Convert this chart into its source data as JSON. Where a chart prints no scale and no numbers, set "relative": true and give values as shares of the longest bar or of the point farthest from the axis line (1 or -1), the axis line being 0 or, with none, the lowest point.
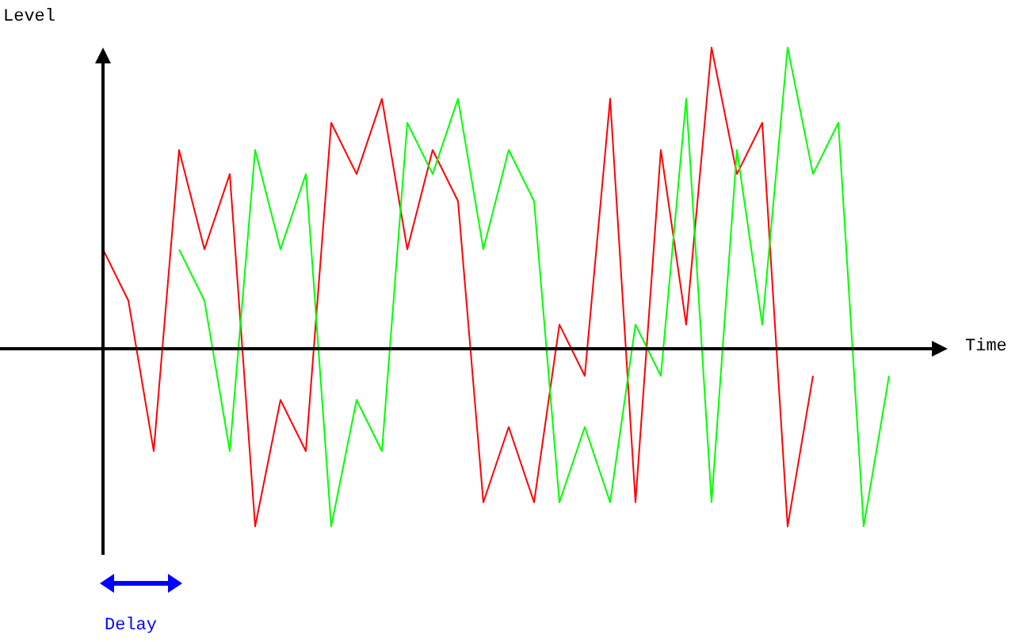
{
  "chart_data": {
    "type": "line",
    "relative": true,
    "xlabel": "Time",
    "ylabel": "Level",
    "annotations": [
      "Delay"
    ],
    "categories": [
      null,
      null,
      null,
      null,
      null,
      null,
      null,
      null,
      null,
      null,
      null,
      null,
      null,
      null,
      null,
      null,
      null,
      null,
      null,
      null,
      null,
      null,
      null,
      null,
      null,
      null,
      null,
      null,
      null,
      null,
      null,
      null
    ],
    "series": [
      {
        "color": "#ff0000",
        "values": [
          0.33,
          0.16,
          -0.34,
          0.66,
          0.33,
          0.58,
          -0.59,
          -0.17,
          -0.34,
          0.75,
          0.58,
          0.83,
          0.33,
          0.66,
          0.49,
          -0.51,
          -0.26,
          -0.51,
          0.08,
          -0.09,
          0.83,
          -0.51,
          0.66,
          0.08,
          1,
          0.58,
          0.75,
          -0.59,
          -0.09,
          null,
          null,
          null
        ]
      },
      {
        "color": "#00ff00",
        "values": [
          null,
          null,
          null,
          0.33,
          0.16,
          -0.34,
          0.66,
          0.33,
          0.58,
          -0.59,
          -0.17,
          -0.34,
          0.75,
          0.58,
          0.83,
          0.33,
          0.66,
          0.49,
          -0.51,
          -0.26,
          -0.51,
          0.08,
          -0.09,
          0.83,
          -0.51,
          0.66,
          0.08,
          1,
          0.58,
          0.75,
          -0.59,
          -0.09
        ]
      }
    ]
  }
}
